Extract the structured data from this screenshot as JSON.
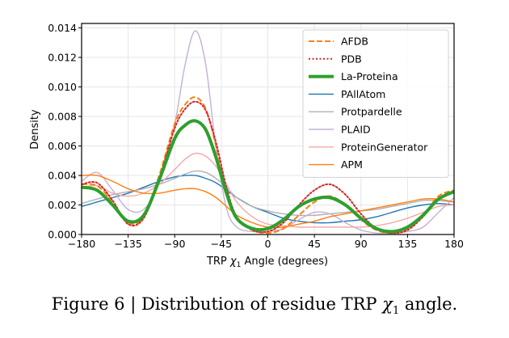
{
  "chart_data": {
    "type": "line",
    "title": "",
    "xlabel_prefix": "TRP ",
    "xlabel_symbol": "χ",
    "xlabel_sub": "1",
    "xlabel_suffix": " Angle (degrees)",
    "ylabel": "Density",
    "xlim": [
      -180,
      180
    ],
    "ylim": [
      0,
      0.0143
    ],
    "grid": true,
    "legend_position": "top-right",
    "xticks": [
      -180,
      -135,
      -90,
      -45,
      0,
      45,
      90,
      135,
      180
    ],
    "xtick_labels": [
      "−180",
      "−135",
      "−90",
      "−45",
      "0",
      "45",
      "90",
      "135",
      "180"
    ],
    "yticks": [
      0,
      0.002,
      0.004,
      0.006,
      0.008,
      0.01,
      0.012,
      0.014
    ],
    "ytick_labels": [
      "0.000",
      "0.002",
      "0.004",
      "0.006",
      "0.008",
      "0.010",
      "0.012",
      "0.014"
    ],
    "x": [
      -180,
      -165,
      -150,
      -135,
      -120,
      -105,
      -90,
      -80,
      -70,
      -60,
      -50,
      -40,
      -30,
      -15,
      0,
      15,
      30,
      45,
      60,
      75,
      90,
      105,
      120,
      135,
      150,
      165,
      180
    ],
    "series": [
      {
        "name": "PAllAtom",
        "color": "#1f77b4",
        "style": "solid",
        "width": 1.4,
        "values": [
          0.0019,
          0.0022,
          0.0025,
          0.0028,
          0.0032,
          0.0036,
          0.0039,
          0.004,
          0.004,
          0.0038,
          0.0035,
          0.003,
          0.0025,
          0.0019,
          0.0015,
          0.0011,
          0.0009,
          0.0008,
          0.0008,
          0.0009,
          0.001,
          0.0012,
          0.0015,
          0.0018,
          0.002,
          0.0021,
          0.002
        ]
      },
      {
        "name": "Protpardelle",
        "color": "#b0b0b0",
        "style": "solid",
        "width": 1.4,
        "values": [
          0.0021,
          0.0024,
          0.0027,
          0.0029,
          0.0031,
          0.0034,
          0.0038,
          0.0041,
          0.0043,
          0.0042,
          0.0038,
          0.0032,
          0.0025,
          0.0019,
          0.0016,
          0.0014,
          0.0013,
          0.0013,
          0.0014,
          0.0015,
          0.0016,
          0.0017,
          0.0019,
          0.0021,
          0.0023,
          0.0023,
          0.0022
        ]
      },
      {
        "name": "PLAID",
        "color": "#c5b0d5",
        "style": "solid",
        "width": 1.4,
        "values": [
          0.0036,
          0.0042,
          0.003,
          0.0017,
          0.0017,
          0.0035,
          0.0075,
          0.0115,
          0.0138,
          0.0115,
          0.0058,
          0.0018,
          0.0005,
          0.0002,
          0.0002,
          0.0004,
          0.001,
          0.0015,
          0.0014,
          0.0008,
          0.0003,
          0.0001,
          0.0001,
          0.0002,
          0.0005,
          0.0015,
          0.0025
        ]
      },
      {
        "name": "ProteinGenerator",
        "color": "#f4a9a8",
        "style": "solid",
        "width": 1.4,
        "values": [
          0.0032,
          0.0033,
          0.0028,
          0.0026,
          0.0028,
          0.0034,
          0.0044,
          0.0051,
          0.0055,
          0.0053,
          0.0046,
          0.0034,
          0.0022,
          0.0012,
          0.0007,
          0.0006,
          0.0005,
          0.0005,
          0.0005,
          0.0005,
          0.0005,
          0.0006,
          0.0008,
          0.0011,
          0.0015,
          0.0019,
          0.002
        ]
      },
      {
        "name": "APM",
        "color": "#ff7f0e",
        "style": "solid",
        "width": 1.4,
        "values": [
          0.004,
          0.004,
          0.0036,
          0.0031,
          0.0028,
          0.0028,
          0.003,
          0.0031,
          0.0031,
          0.0029,
          0.0025,
          0.0019,
          0.0013,
          0.0008,
          0.0005,
          0.0005,
          0.0007,
          0.0009,
          0.0012,
          0.0014,
          0.0016,
          0.0018,
          0.002,
          0.0022,
          0.0024,
          0.0024,
          0.0022
        ]
      },
      {
        "name": "AFDB",
        "color": "#ff7f0e",
        "style": "dashed",
        "width": 2.0,
        "values": [
          0.0034,
          0.0033,
          0.0022,
          0.0008,
          0.0012,
          0.004,
          0.0075,
          0.0088,
          0.0093,
          0.0085,
          0.006,
          0.003,
          0.0011,
          0.0003,
          0.0001,
          0.0004,
          0.0013,
          0.0022,
          0.0026,
          0.002,
          0.001,
          0.0003,
          0.0001,
          0.0004,
          0.0013,
          0.0026,
          0.003
        ]
      },
      {
        "name": "PDB",
        "color": "#d62728",
        "style": "dotted",
        "width": 2.0,
        "values": [
          0.0034,
          0.0035,
          0.0023,
          0.0007,
          0.0011,
          0.0038,
          0.0072,
          0.0085,
          0.009,
          0.0084,
          0.0062,
          0.0032,
          0.0012,
          0.0003,
          0.0002,
          0.0008,
          0.002,
          0.003,
          0.0034,
          0.0027,
          0.0014,
          0.0004,
          0.0001,
          0.0003,
          0.0012,
          0.0024,
          0.0029
        ]
      },
      {
        "name": "La-Proteina",
        "color": "#2ca02c",
        "style": "solid",
        "width": 4.0,
        "values": [
          0.0032,
          0.003,
          0.002,
          0.0009,
          0.0013,
          0.0037,
          0.0065,
          0.0074,
          0.0077,
          0.0071,
          0.0052,
          0.0028,
          0.0011,
          0.0004,
          0.0004,
          0.001,
          0.0019,
          0.0024,
          0.0025,
          0.002,
          0.0011,
          0.0004,
          0.0002,
          0.0005,
          0.0013,
          0.0024,
          0.0029
        ]
      }
    ],
    "legend_order": [
      "AFDB",
      "PDB",
      "La-Proteina",
      "PAllAtom",
      "Protpardelle",
      "PLAID",
      "ProteinGenerator",
      "APM"
    ]
  },
  "caption": {
    "prefix": "Figure 6 | Distribution of residue TRP ",
    "symbol": "χ",
    "sub": "1",
    "suffix": " angle."
  }
}
